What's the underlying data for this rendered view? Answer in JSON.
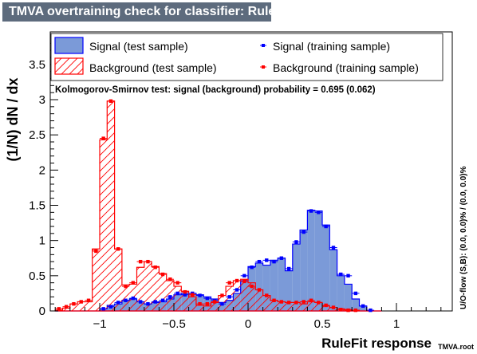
{
  "title": "TMVA overtraining check for classifier: RuleFit",
  "colors": {
    "title_bg": "#5d6b7d",
    "signal_fill": "#7b9ad8",
    "signal_line": "#0000ff",
    "background_line": "#ff0000",
    "marker_signal": "#0000ff",
    "marker_background": "#ff0000"
  },
  "legend": {
    "signal_test": "Signal (test sample)",
    "background_test": "Background (test sample)",
    "signal_train": "Signal (training sample)",
    "background_train": "Background (training sample)"
  },
  "ks_text": "Kolmogorov-Smirnov test: signal (background) probability = 0.695 (0.062)",
  "overflow_text": "U/O-flow (S,B): (0.0, 0.0)% / (0.0, 0.0)%",
  "watermark": "TMVA.root",
  "chart_data": {
    "type": "histogram",
    "xlabel": "RuleFit response",
    "ylabel": "(1/N) dN / dx",
    "xlim": [
      -1.35,
      1.35
    ],
    "ylim": [
      0,
      3.9
    ],
    "bin_edges_start": -1.3,
    "bin_width": 0.05,
    "x_ticks": [
      -1,
      -0.5,
      0,
      0.5,
      1
    ],
    "x_tick_labels": [
      "−1",
      "−0.5",
      "0",
      "0.5",
      "1"
    ],
    "y_ticks": [
      0,
      0.5,
      1,
      1.5,
      2,
      2.5,
      3,
      3.5
    ],
    "y_tick_labels": [
      "0",
      "0.5",
      "1",
      "1.5",
      "2",
      "2.5",
      "3",
      "3.5"
    ],
    "series": [
      {
        "name": "Signal (test sample)",
        "kind": "filled-histogram",
        "values": [
          0,
          0,
          0,
          0,
          0,
          0,
          0.03,
          0.08,
          0.1,
          0.15,
          0.17,
          0.13,
          0.1,
          0.12,
          0.13,
          0.17,
          0.23,
          0.25,
          0.25,
          0.23,
          0.2,
          0.17,
          0.12,
          0.15,
          0.25,
          0.43,
          0.63,
          0.68,
          0.65,
          0.72,
          0.75,
          0.57,
          0.95,
          1.15,
          1.43,
          1.42,
          1.22,
          0.87,
          0.5,
          0.38,
          0.17,
          0.07,
          0,
          0
        ]
      },
      {
        "name": "Background (test sample)",
        "kind": "hatched-histogram",
        "values": [
          0.01,
          0.04,
          0.1,
          0.13,
          0.13,
          0.88,
          2.43,
          2.98,
          0.88,
          0.37,
          0.38,
          0.62,
          0.7,
          0.63,
          0.53,
          0.43,
          0.35,
          0.28,
          0.2,
          0.08,
          0.07,
          0.12,
          0.22,
          0.35,
          0.43,
          0.45,
          0.4,
          0.3,
          0.22,
          0.15,
          0.13,
          0.12,
          0.12,
          0.1,
          0.13,
          0.12,
          0.07,
          0.05,
          0.03,
          0.02,
          0.01,
          0,
          0,
          0
        ]
      },
      {
        "name": "Signal (training sample)",
        "kind": "markers",
        "values": [
          0,
          0,
          0,
          0,
          0,
          0,
          0.03,
          0.06,
          0.12,
          0.15,
          0.18,
          0.13,
          0.1,
          0.13,
          0.15,
          0.2,
          0.25,
          0.23,
          0.25,
          0.22,
          0.18,
          0.15,
          0.1,
          0.2,
          0.3,
          0.5,
          0.62,
          0.7,
          0.72,
          0.7,
          0.75,
          0.6,
          0.98,
          1.12,
          1.42,
          1.4,
          1.2,
          0.9,
          0.52,
          0.5,
          0.25,
          0.07,
          0.01,
          0
        ]
      },
      {
        "name": "Background (training sample)",
        "kind": "markers",
        "values": [
          0.03,
          0.06,
          0.1,
          0.13,
          0.15,
          0.85,
          2.45,
          2.98,
          0.88,
          0.35,
          0.4,
          0.7,
          0.7,
          0.62,
          0.52,
          0.45,
          0.4,
          0.27,
          0.23,
          0.1,
          0.1,
          0.13,
          0.22,
          0.4,
          0.43,
          0.42,
          0.35,
          0.3,
          0.22,
          0.15,
          0.13,
          0.12,
          0.12,
          0.13,
          0.15,
          0.12,
          0.08,
          0.05,
          0.02,
          0.01,
          0.01,
          0,
          0,
          0
        ]
      }
    ]
  }
}
